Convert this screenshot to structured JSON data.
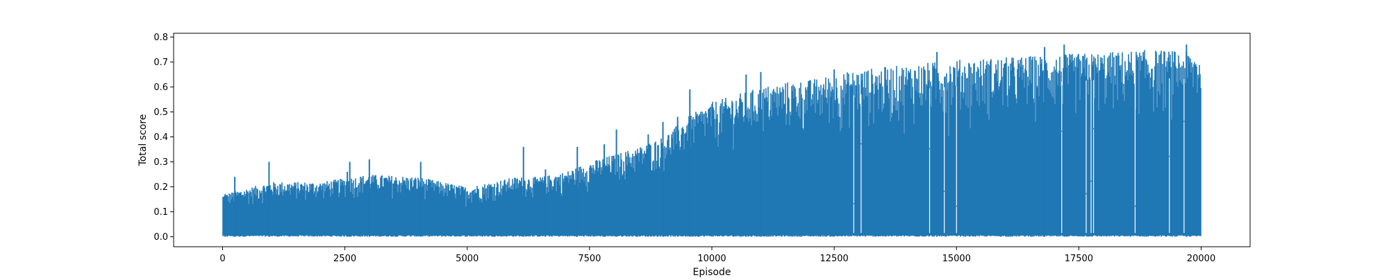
{
  "chart_data": {
    "type": "line",
    "title": "",
    "xlabel": "Episode",
    "ylabel": "Total score",
    "xlim": [
      -1000,
      21000
    ],
    "ylim": [
      -0.04,
      0.815
    ],
    "x_ticks": [
      0,
      2500,
      5000,
      7500,
      10000,
      12500,
      15000,
      17500,
      20000
    ],
    "y_ticks": [
      0.0,
      0.1,
      0.2,
      0.3,
      0.4,
      0.5,
      0.6,
      0.7,
      0.8
    ],
    "x_tick_labels": [
      "0",
      "2500",
      "5000",
      "7500",
      "10000",
      "12500",
      "15000",
      "17500",
      "20000"
    ],
    "y_tick_labels": [
      "0.0",
      "0.1",
      "0.2",
      "0.3",
      "0.4",
      "0.5",
      "0.6",
      "0.7",
      "0.8"
    ],
    "grid": false,
    "legend": "none",
    "series": [
      {
        "color": "#1f77b4",
        "x_range": [
          0,
          20000
        ],
        "min_value": 0.0,
        "envelope_x": [
          0,
          1000,
          2000,
          3000,
          4000,
          5000,
          6000,
          6500,
          7000,
          7500,
          8000,
          8500,
          9000,
          9500,
          10000,
          10500,
          11000,
          11500,
          12000,
          12500,
          13000,
          14000,
          15000,
          16000,
          17000,
          18000,
          19000,
          20000
        ],
        "envelope_max": [
          0.17,
          0.22,
          0.22,
          0.25,
          0.24,
          0.2,
          0.24,
          0.24,
          0.26,
          0.3,
          0.33,
          0.36,
          0.4,
          0.48,
          0.54,
          0.57,
          0.6,
          0.62,
          0.63,
          0.65,
          0.67,
          0.69,
          0.71,
          0.72,
          0.73,
          0.74,
          0.75,
          0.74
        ],
        "peaks": [
          {
            "x": 50,
            "y": 0.17
          },
          {
            "x": 250,
            "y": 0.24
          },
          {
            "x": 950,
            "y": 0.3
          },
          {
            "x": 2550,
            "y": 0.26
          },
          {
            "x": 2600,
            "y": 0.3
          },
          {
            "x": 3000,
            "y": 0.31
          },
          {
            "x": 4050,
            "y": 0.3
          },
          {
            "x": 6150,
            "y": 0.36
          },
          {
            "x": 6600,
            "y": 0.27
          },
          {
            "x": 7250,
            "y": 0.36
          },
          {
            "x": 7800,
            "y": 0.37
          },
          {
            "x": 8050,
            "y": 0.43
          },
          {
            "x": 8700,
            "y": 0.41
          },
          {
            "x": 9000,
            "y": 0.46
          },
          {
            "x": 9300,
            "y": 0.48
          },
          {
            "x": 9550,
            "y": 0.59
          },
          {
            "x": 10700,
            "y": 0.65
          },
          {
            "x": 11000,
            "y": 0.66
          },
          {
            "x": 12500,
            "y": 0.67
          },
          {
            "x": 14600,
            "y": 0.74
          },
          {
            "x": 16800,
            "y": 0.76
          },
          {
            "x": 17200,
            "y": 0.77
          },
          {
            "x": 19700,
            "y": 0.77
          }
        ],
        "dips": [
          {
            "x": 12900,
            "y": 0.13
          },
          {
            "x": 13050,
            "y": 0.37
          },
          {
            "x": 14450,
            "y": 0.35
          },
          {
            "x": 14750,
            "y": 0.18
          },
          {
            "x": 15000,
            "y": 0.12
          },
          {
            "x": 17150,
            "y": 0.42
          },
          {
            "x": 17650,
            "y": 0.17
          },
          {
            "x": 17750,
            "y": 0.22
          },
          {
            "x": 17800,
            "y": 0.43
          },
          {
            "x": 18650,
            "y": 0.12
          },
          {
            "x": 19350,
            "y": 0.32
          },
          {
            "x": 19650,
            "y": 0.46
          }
        ]
      }
    ]
  }
}
